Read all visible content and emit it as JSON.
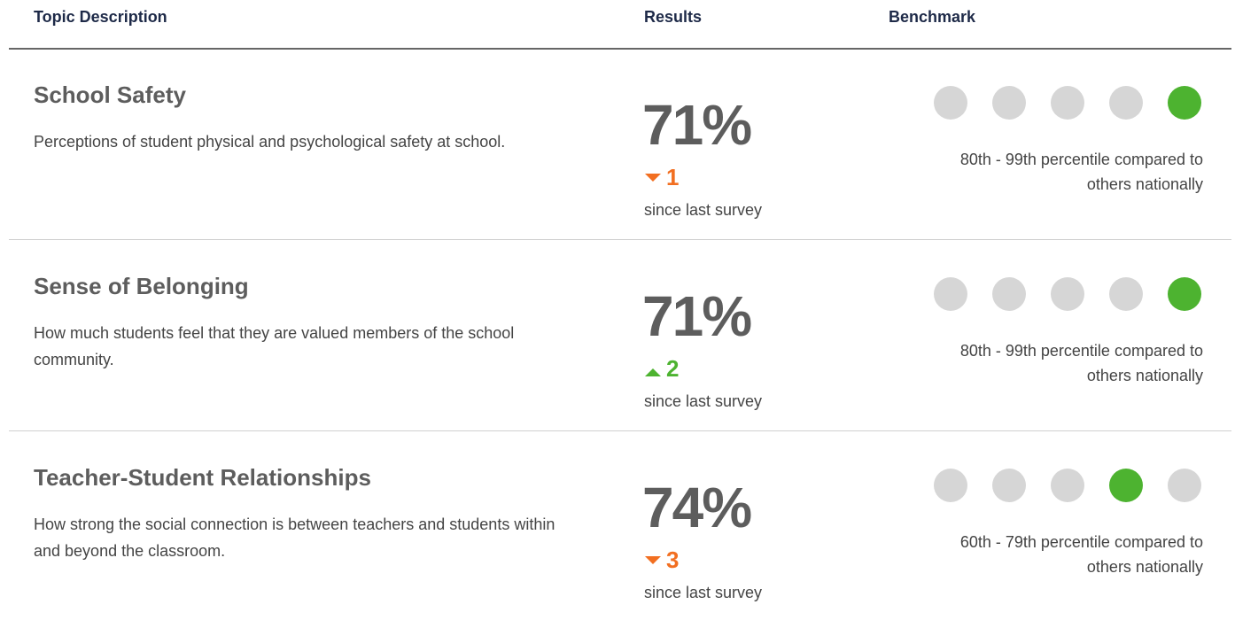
{
  "header": {
    "columns": [
      "Topic Description",
      "Results",
      "Benchmark"
    ]
  },
  "rows": [
    {
      "title": "School Safety",
      "description": "Perceptions of student physical and psychological safety at school.",
      "result": "71%",
      "change": "1",
      "direction": "down",
      "change_note": "since last survey",
      "benchmark": {
        "level": 5,
        "of": 5,
        "label": "80th - 99th percentile compared to others nationally"
      }
    },
    {
      "title": "Sense of Belonging",
      "description": "How much students feel that they are valued members of the school community.",
      "result": "71%",
      "change": "2",
      "direction": "up",
      "change_note": "since last survey",
      "benchmark": {
        "level": 5,
        "of": 5,
        "label": "80th - 99th percentile compared to others nationally"
      }
    },
    {
      "title": "Teacher-Student Relationships",
      "description": "How strong the social connection is between teachers and students within and beyond the classroom.",
      "result": "74%",
      "change": "3",
      "direction": "down",
      "change_note": "since last survey",
      "benchmark": {
        "level": 4,
        "of": 5,
        "label": "60th - 79th percentile compared to others nationally"
      }
    }
  ]
}
